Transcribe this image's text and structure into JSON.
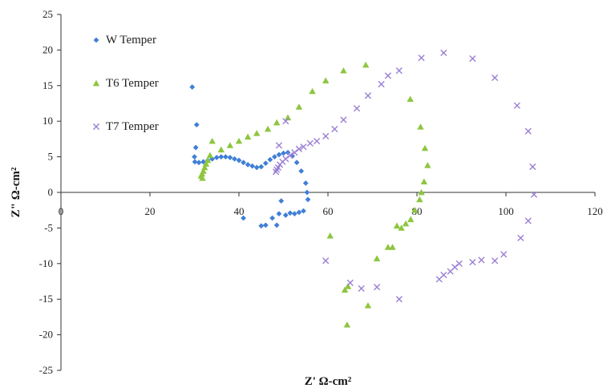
{
  "chart_data": {
    "type": "scatter",
    "title": "",
    "xlabel": "Z' Ω-cm²",
    "ylabel": "Z\" Ω-cm²",
    "xlim": [
      0,
      120
    ],
    "ylim": [
      -25,
      25
    ],
    "x_ticks": [
      0,
      20,
      40,
      60,
      80,
      100,
      120
    ],
    "y_ticks": [
      -25,
      -20,
      -15,
      -10,
      -5,
      0,
      5,
      10,
      15,
      20,
      25
    ],
    "grid": false,
    "legend_position": "top-left",
    "series": [
      {
        "name": "W Temper",
        "marker": "diamond",
        "color": "#3f7fd6",
        "points": [
          [
            29.5,
            14.8
          ],
          [
            30.5,
            9.5
          ],
          [
            30.3,
            6.3
          ],
          [
            30.0,
            5.0
          ],
          [
            30.1,
            4.3
          ],
          [
            31.0,
            4.2
          ],
          [
            32.0,
            4.3
          ],
          [
            33.0,
            4.5
          ],
          [
            34.0,
            4.7
          ],
          [
            35.0,
            4.9
          ],
          [
            36.0,
            5.0
          ],
          [
            37.0,
            5.0
          ],
          [
            38.0,
            4.9
          ],
          [
            39.0,
            4.7
          ],
          [
            40.0,
            4.5
          ],
          [
            41.0,
            4.2
          ],
          [
            42.0,
            3.9
          ],
          [
            43.0,
            3.7
          ],
          [
            44.0,
            3.5
          ],
          [
            45.0,
            3.6
          ],
          [
            46.0,
            4.1
          ],
          [
            47.0,
            4.6
          ],
          [
            48.0,
            5.0
          ],
          [
            49.0,
            5.3
          ],
          [
            50.0,
            5.5
          ],
          [
            51.0,
            5.6
          ],
          [
            52.0,
            5.1
          ],
          [
            53.0,
            4.2
          ],
          [
            54.0,
            3.0
          ],
          [
            55.0,
            1.3
          ],
          [
            55.3,
            0.0
          ],
          [
            55.5,
            -1.0
          ],
          [
            54.5,
            -2.6
          ],
          [
            53.5,
            -2.8
          ],
          [
            52.5,
            -3.0
          ],
          [
            51.5,
            -2.9
          ],
          [
            50.5,
            -3.2
          ],
          [
            49.0,
            -3.0
          ],
          [
            47.5,
            -3.6
          ],
          [
            46.0,
            -4.6
          ],
          [
            45.0,
            -4.7
          ],
          [
            41.0,
            -3.6
          ],
          [
            48.5,
            -4.6
          ],
          [
            49.5,
            -1.2
          ]
        ]
      },
      {
        "name": "T6 Temper",
        "marker": "triangle",
        "color": "#8dc63f",
        "points": [
          [
            68.5,
            17.9
          ],
          [
            63.5,
            17.1
          ],
          [
            59.5,
            15.7
          ],
          [
            56.5,
            14.2
          ],
          [
            53.5,
            12.0
          ],
          [
            51.0,
            10.5
          ],
          [
            48.5,
            9.8
          ],
          [
            46.5,
            8.9
          ],
          [
            44.0,
            8.3
          ],
          [
            42.0,
            7.8
          ],
          [
            40.0,
            7.2
          ],
          [
            38.0,
            6.6
          ],
          [
            36.0,
            6.0
          ],
          [
            34.0,
            7.2
          ],
          [
            33.5,
            5.2
          ],
          [
            33.0,
            4.5
          ],
          [
            32.6,
            4.0
          ],
          [
            32.3,
            3.5
          ],
          [
            32.0,
            3.0
          ],
          [
            31.7,
            2.6
          ],
          [
            31.5,
            2.3
          ],
          [
            31.8,
            2.0
          ],
          [
            78.5,
            13.1
          ],
          [
            80.8,
            9.2
          ],
          [
            81.8,
            6.2
          ],
          [
            82.4,
            3.8
          ],
          [
            81.6,
            1.5
          ],
          [
            81.0,
            0.0
          ],
          [
            80.6,
            -1.0
          ],
          [
            79.5,
            -2.5
          ],
          [
            78.6,
            -3.8
          ],
          [
            77.5,
            -4.4
          ],
          [
            76.5,
            -5.0
          ],
          [
            75.5,
            -4.7
          ],
          [
            74.5,
            -7.7
          ],
          [
            73.5,
            -7.7
          ],
          [
            71.0,
            -9.3
          ],
          [
            60.5,
            -6.1
          ],
          [
            64.5,
            -13.2
          ],
          [
            63.8,
            -13.7
          ],
          [
            69.0,
            -15.9
          ],
          [
            64.3,
            -18.6
          ]
        ]
      },
      {
        "name": "T7 Temper",
        "marker": "cross",
        "color": "#9b7fd4",
        "points": [
          [
            86.0,
            19.6
          ],
          [
            81.0,
            18.9
          ],
          [
            92.5,
            18.8
          ],
          [
            97.5,
            16.1
          ],
          [
            102.5,
            12.2
          ],
          [
            105.0,
            8.6
          ],
          [
            106.0,
            3.6
          ],
          [
            106.3,
            -0.3
          ],
          [
            105.0,
            -4.0
          ],
          [
            103.3,
            -6.4
          ],
          [
            99.5,
            -8.7
          ],
          [
            97.5,
            -9.6
          ],
          [
            94.5,
            -9.5
          ],
          [
            92.5,
            -9.8
          ],
          [
            89.5,
            -10.0
          ],
          [
            88.5,
            -10.5
          ],
          [
            87.5,
            -11.1
          ],
          [
            86.0,
            -11.6
          ],
          [
            85.0,
            -12.2
          ],
          [
            76.0,
            -15.0
          ],
          [
            71.0,
            -13.3
          ],
          [
            67.5,
            -13.5
          ],
          [
            65.0,
            -12.7
          ],
          [
            59.5,
            -9.6
          ],
          [
            76.0,
            17.1
          ],
          [
            73.5,
            16.4
          ],
          [
            72.0,
            15.2
          ],
          [
            69.0,
            13.6
          ],
          [
            66.5,
            11.8
          ],
          [
            63.5,
            10.2
          ],
          [
            61.5,
            8.9
          ],
          [
            59.5,
            7.9
          ],
          [
            57.5,
            7.2
          ],
          [
            56.0,
            6.9
          ],
          [
            54.5,
            6.4
          ],
          [
            53.5,
            6.1
          ],
          [
            52.5,
            5.6
          ],
          [
            51.5,
            5.2
          ],
          [
            50.5,
            4.7
          ],
          [
            49.8,
            4.3
          ],
          [
            49.2,
            3.9
          ],
          [
            48.8,
            3.5
          ],
          [
            48.5,
            3.2
          ],
          [
            48.3,
            2.9
          ],
          [
            49.0,
            6.6
          ],
          [
            50.5,
            10.0
          ]
        ]
      }
    ]
  }
}
